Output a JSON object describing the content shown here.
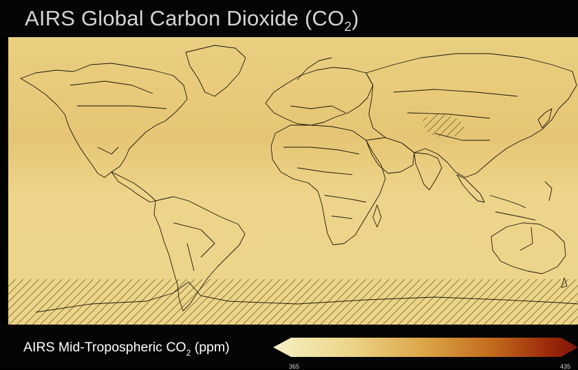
{
  "title": {
    "main": "AIRS Global Carbon Dioxide (CO",
    "subscript": "2",
    "close": ")"
  },
  "legend": {
    "label_main": "AIRS Mid-Tropospheric CO",
    "label_subscript": "2",
    "label_units": "(ppm)",
    "min_tick": "365",
    "max_tick": "435",
    "range_ppm": [
      365,
      435
    ],
    "gradient_colors": [
      "#f6f0c4",
      "#ecd589",
      "#dba446",
      "#c26a1c",
      "#9c2a0c",
      "#7d1406"
    ]
  },
  "map": {
    "background_color": "#ecd589",
    "hatched_regions": [
      "Tibetan Plateau",
      "Antarctica"
    ]
  }
}
